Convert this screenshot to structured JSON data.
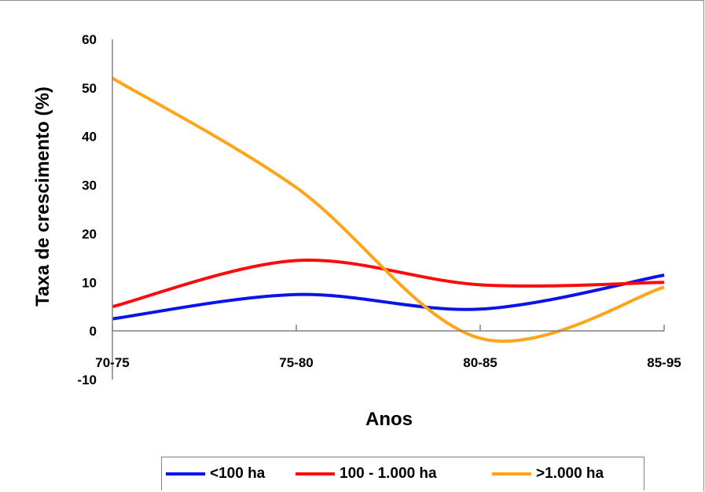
{
  "chart_data": {
    "type": "line",
    "categories": [
      "70-75",
      "75-80",
      "80-85",
      "85-95"
    ],
    "series": [
      {
        "name": "<100 ha",
        "color": "#0a14e6",
        "values": [
          2.5,
          7.5,
          4.5,
          11.5
        ]
      },
      {
        "name": "100 - 1.000 ha",
        "color": "#ff0a0a",
        "values": [
          5,
          14.5,
          9.5,
          10
        ]
      },
      {
        "name": ">1.000 ha",
        "color": "#ffa51a",
        "values": [
          52,
          29.5,
          -1.5,
          9
        ]
      }
    ],
    "title": "",
    "xlabel": "Anos",
    "ylabel": "Taxa de crescimento (%)",
    "ylim": [
      -10,
      60
    ],
    "yticks": [
      "60",
      "50",
      "40",
      "30",
      "20",
      "10",
      "0",
      "-10"
    ],
    "grid": false,
    "legend": "bottom",
    "smooth": true
  }
}
